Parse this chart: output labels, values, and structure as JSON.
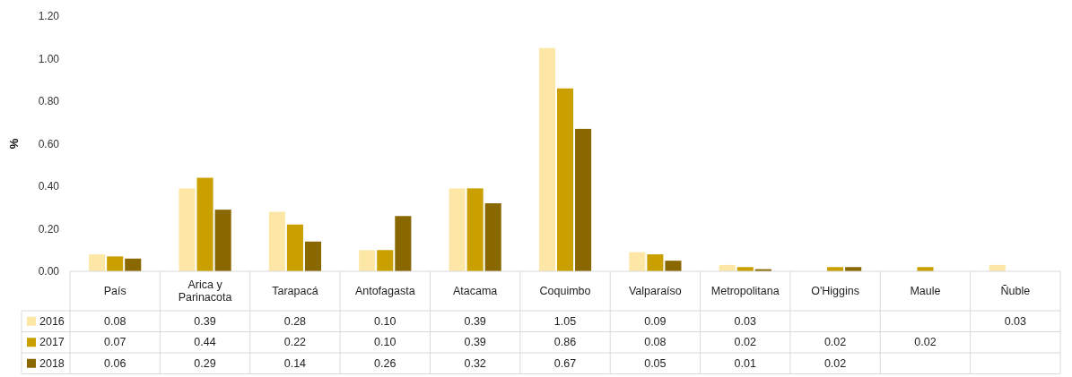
{
  "chart_data": {
    "type": "bar",
    "ylabel": "%",
    "categories": [
      "País",
      "Arica y Parinacota",
      "Tarapacá",
      "Antofagasta",
      "Atacama",
      "Coquimbo",
      "Valparaíso",
      "Metropolitana",
      "O'Higgins",
      "Maule",
      "Ñuble"
    ],
    "series": [
      {
        "name": "2016",
        "color": "#fde7a6",
        "values": [
          0.08,
          0.39,
          0.28,
          0.1,
          0.39,
          1.05,
          0.09,
          0.03,
          null,
          null,
          0.03
        ],
        "value_labels": [
          "0.08",
          "0.39",
          "0.28",
          "0.10",
          "0.39",
          "1.05",
          "0.09",
          "0.03",
          null,
          null,
          "0.03"
        ]
      },
      {
        "name": "2017",
        "color": "#c9a000",
        "values": [
          0.07,
          0.44,
          0.22,
          0.1,
          0.39,
          0.86,
          0.08,
          0.02,
          0.02,
          0.02,
          null
        ],
        "value_labels": [
          "0.07",
          "0.44",
          "0.22",
          "0.10",
          "0.39",
          "0.86",
          "0.08",
          "0.02",
          "0.02",
          "0.02",
          null
        ]
      },
      {
        "name": "2018",
        "color": "#8a6800",
        "values": [
          0.06,
          0.29,
          0.14,
          0.26,
          0.32,
          0.67,
          0.05,
          0.01,
          0.02,
          null,
          null
        ],
        "value_labels": [
          "0.06",
          "0.29",
          "0.14",
          "0.26",
          "0.32",
          "0.67",
          "0.05",
          "0.01",
          "0.02",
          null,
          null
        ]
      }
    ],
    "ylim": [
      0,
      1.2
    ],
    "yticks": [
      {
        "value": 0,
        "label": "0.00"
      },
      {
        "value": 0.2,
        "label": "0.20"
      },
      {
        "value": 0.4,
        "label": "0.40"
      },
      {
        "value": 0.6,
        "label": "0.60"
      },
      {
        "value": 0.8,
        "label": "0.80"
      },
      {
        "value": 1,
        "label": "1.00"
      },
      {
        "value": 1.2,
        "label": "1.20"
      }
    ],
    "legend": "bottom"
  }
}
